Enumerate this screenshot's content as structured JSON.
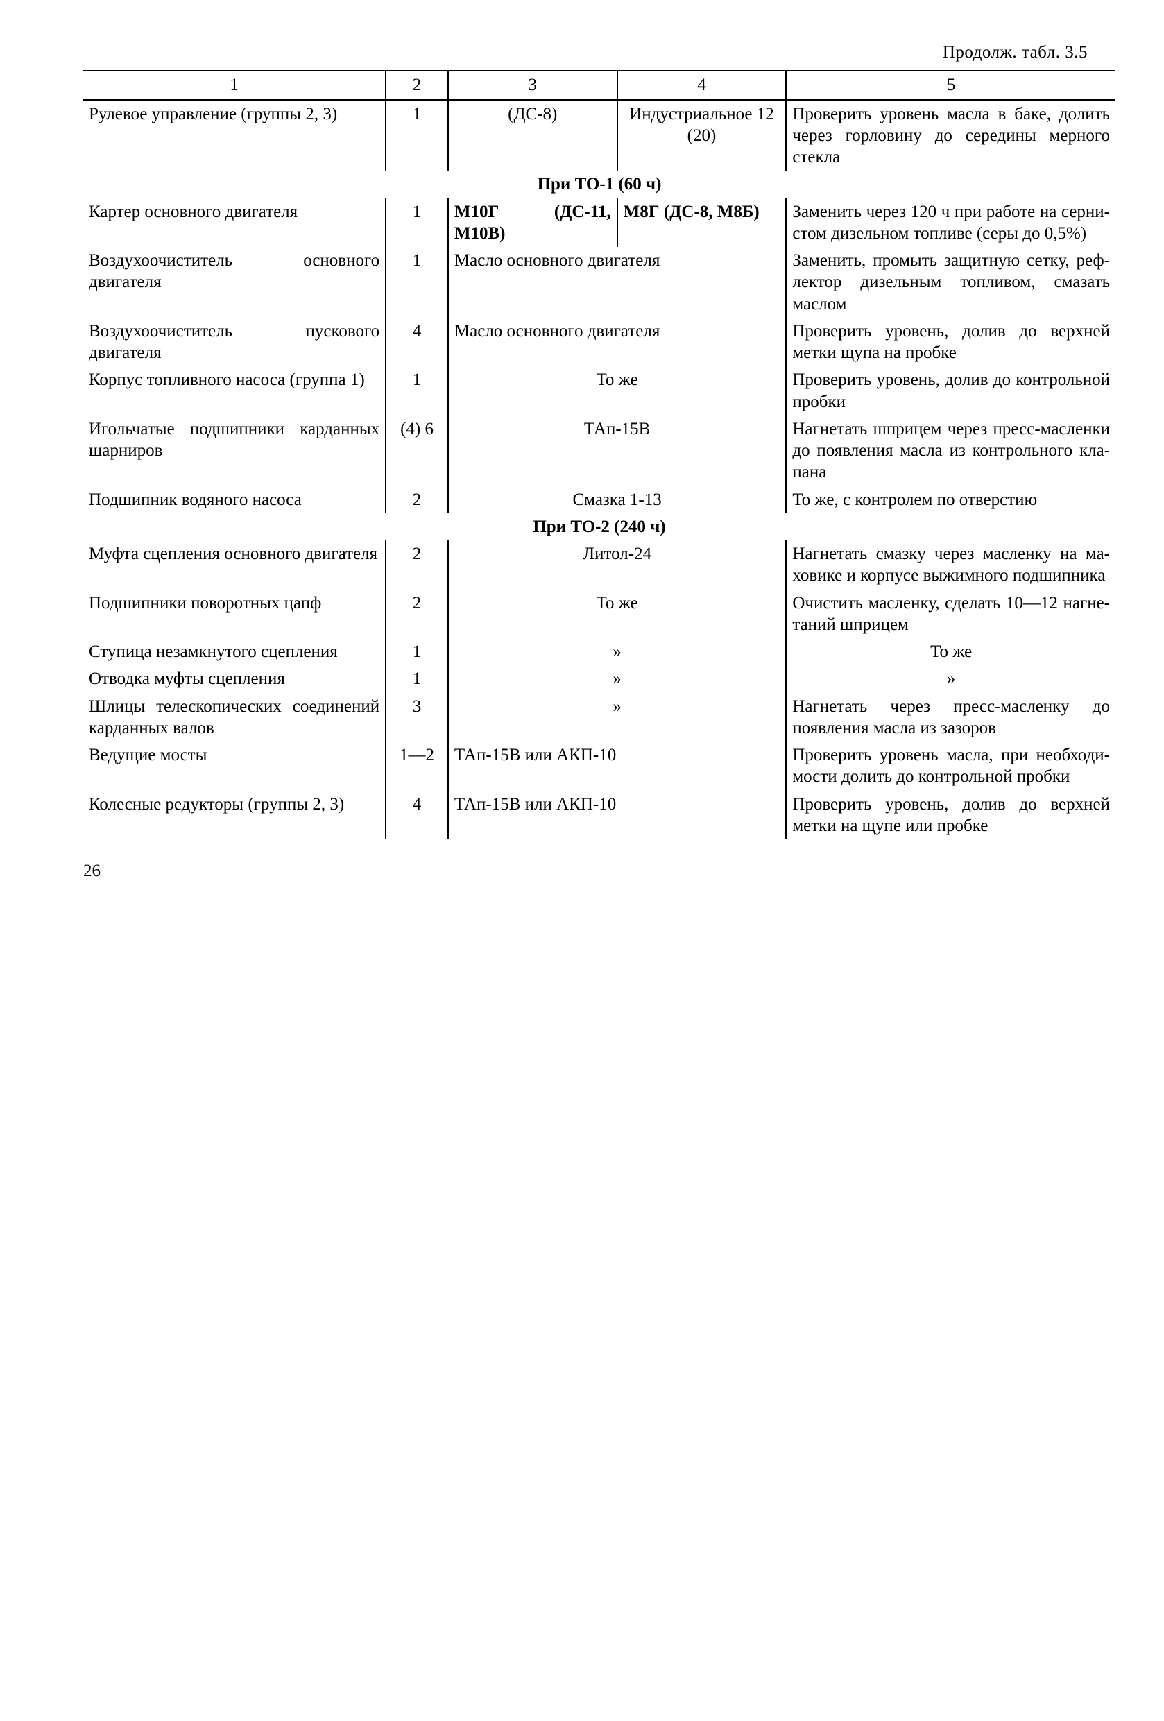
{
  "continuation": "Продолж. табл. 3.5",
  "headers": {
    "c1": "1",
    "c2": "2",
    "c3": "3",
    "c4": "4",
    "c5": "5"
  },
  "row_steering": {
    "name": "Рулевое управление (группы 2, 3)",
    "qty": "1",
    "c3": "(ДС-8)",
    "c4": "Индустри­альное 12 (20)",
    "c5": "Проверить уровень масла в баке, долить через горловину до середины мерного стекла"
  },
  "sec_to1": "При ТО-1 (60 ч)",
  "row_carter": {
    "name": "Картер основного двига­теля",
    "qty": "1",
    "c3": "М10Г (ДС-11, М10В)",
    "c4": "М8Г (ДС-8, М8Б)",
    "c5": "Заменить через 120 ч при работе на серни­стом дизельном топ­ливе (серы до 0,5%)"
  },
  "row_airmain": {
    "name": "Воздухоочиститель ос­новного двигателя",
    "qty": "1",
    "c34": "Масло основного двига­теля",
    "c5": "Заменить, промыть защитную сетку, реф­лектор дизельным топливом, смазать маслом"
  },
  "row_airstart": {
    "name": "Воздухоочиститель пус­кового двигателя",
    "qty": "4",
    "c34": "Масло основного двига­теля",
    "c5": "Проверить уровень, долив до верхней метки щупа на проб­ке"
  },
  "row_fuelpump": {
    "name": "Корпус топливного на­соса (группа 1)",
    "qty": "1",
    "c34": "То же",
    "c5": "Проверить уровень, долив до контроль­ной пробки"
  },
  "row_needle": {
    "name": "Игольчатые подшипники карданных шарниров",
    "qty": "(4) 6",
    "c34": "ТАп-15В",
    "c5": "Нагнетать шприцем через пресс-масленки до появления масла из контрольного кла­пана"
  },
  "row_waterpump": {
    "name": "Подшипник водяного насоса",
    "qty": "2",
    "c34": "Смазка 1-13",
    "c5": "То же, с контролем по отверстию"
  },
  "sec_to2": "При ТО-2 (240 ч)",
  "row_clutch": {
    "name": "Муфта сцепления основ­ного двигателя",
    "qty": "2",
    "c34": "Литол-24",
    "c5": "Нагнетать смазку че­рез масленку на ма­ховике и корпусе выжимного подшип­ника"
  },
  "row_pivot": {
    "name": "Подшипники поворотных цапф",
    "qty": "2",
    "c34": "То же",
    "c5": "Очистить масленку, сделать 10—12 нагне­таний шприцем"
  },
  "row_hub": {
    "name": "Ступица незамкнутого сцепления",
    "qty": "1",
    "c34": "»",
    "c5": "То же"
  },
  "row_otvod": {
    "name": "Отводка муфты сцепле­ния",
    "qty": "1",
    "c34": "»",
    "c5": "»"
  },
  "row_spline": {
    "name": "Шлицы телескопических соединений карданных валов",
    "qty": "3",
    "c34": "»",
    "c5": "Нагнетать через пресс-масленку до появления масла из зазоров"
  },
  "row_axle": {
    "name": "Ведущие мосты",
    "qty": "1—2",
    "c34": "ТАп-15В или АКП-10",
    "c5": "Проверить уровень масла, при необходи­мости долить до контрольной пробки"
  },
  "row_wheelred": {
    "name": "Колесные редукторы (группы 2, 3)",
    "qty": "4",
    "c34": "ТАп-15В или АКП-10",
    "c5": "Проверить уровень, долив до верхней метки на щупе или пробке"
  },
  "page": "26"
}
